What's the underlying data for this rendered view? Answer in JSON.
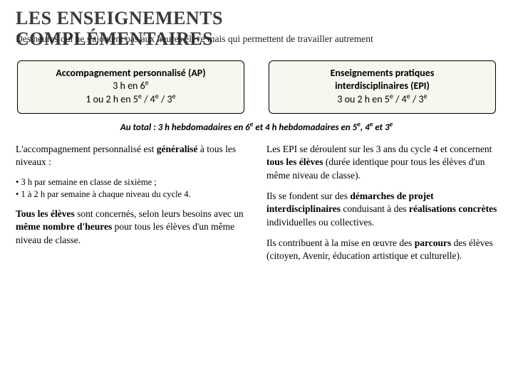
{
  "title_line1": "LES ENSEIGNEMENTS",
  "title_line2": "COMPLÉMENTAIRES",
  "subtitle": "Des heures qui ne s'ajoutent pas aux heures élève mais qui permettent de travailler autrement",
  "box_left": {
    "l1": "Accompagnement personnalisé (AP)",
    "l2": "3 h en 6",
    "l2_sup": "e",
    "l3a": "1 ou 2 h en 5",
    "l3b": " / 4",
    "l3c": " / 3",
    "sup": "e"
  },
  "box_right": {
    "l1": "Enseignements pratiques",
    "l2": "interdisciplinaires (EPI)",
    "l3a": "3 ou 2 h en 5",
    "l3b": " / 4",
    "l3c": " / 3",
    "sup": "e"
  },
  "summary": {
    "a": "Au total : 3 h hebdomadaires en 6",
    "b": " et 4 h hebdomadaires en 5",
    "c": ", 4",
    "d": " et 3",
    "sup": "e"
  },
  "left_col": {
    "p1a": "L'accompagnement personnalisé est ",
    "p1b": "généralisé",
    "p1c": " à tous les niveaux :",
    "b1": "• 3 h par semaine en classe de sixième ;",
    "b2": "• 1 à 2 h par semaine à chaque niveau du cycle 4.",
    "p2a": "Tous les élèves",
    "p2b": " sont concernés, selon leurs besoins avec un ",
    "p2c": "même nombre d'heures",
    "p2d": " pour tous les élèves d'un même niveau de classe."
  },
  "right_col": {
    "p1a": "Les EPI se déroulent sur les 3 ans du cycle 4 et concernent ",
    "p1b": "tous les élèves",
    "p1c": " (durée identique pour tous les élèves d'un même niveau de classe).",
    "p2a": "Ils se fondent sur des ",
    "p2b": "démarches de projet interdisciplinaires",
    "p2c": " conduisant à des ",
    "p2d": "réalisations concrètes",
    "p2e": " individuelles ou collectives.",
    "p3a": "Ils contribuent à la mise en œuvre des ",
    "p3b": "parcours",
    "p3c": " des élèves (citoyen, Avenir, éducation artistique et culturelle)."
  },
  "colors": {
    "box_bg": "#f5f8ee",
    "box_border": "#000000",
    "title_color": "#3a3a3a"
  }
}
